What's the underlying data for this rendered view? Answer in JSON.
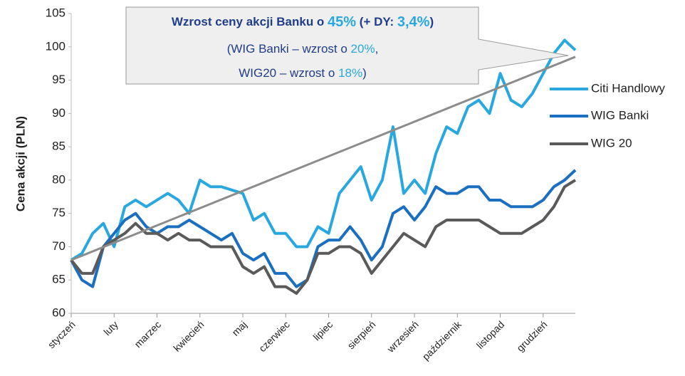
{
  "chart_data": {
    "type": "line",
    "y_label": "Cena akcji (PLN)",
    "categories": [
      "styczeń",
      null,
      null,
      null,
      "luty",
      null,
      null,
      null,
      "marzec",
      null,
      null,
      null,
      "kwiecień",
      null,
      null,
      null,
      "maj",
      null,
      null,
      null,
      "czerwiec",
      null,
      null,
      null,
      "lipiec",
      null,
      null,
      null,
      "sierpień",
      null,
      null,
      null,
      "wrzesień",
      null,
      null,
      null,
      "październik",
      null,
      null,
      null,
      "listopad",
      null,
      null,
      null,
      "grudzień",
      null,
      null,
      null
    ],
    "series": [
      {
        "name": "Citi Handlowy",
        "color": "#29a8e0",
        "values": [
          68,
          69,
          72,
          73.5,
          70,
          76,
          77,
          76,
          77,
          78,
          77,
          75,
          80,
          79,
          79,
          78.5,
          78,
          74,
          75,
          72,
          72,
          70,
          70,
          73,
          72,
          78,
          80,
          82,
          77,
          80,
          88,
          78,
          80,
          78,
          84,
          88,
          87,
          91,
          92,
          90,
          96,
          92,
          91,
          93,
          96,
          99,
          101,
          99.5
        ]
      },
      {
        "name": "WIG Banki",
        "color": "#1a6fc0",
        "values": [
          68,
          65,
          64,
          70,
          72,
          74,
          75,
          73,
          72,
          73,
          73,
          74,
          73,
          72,
          71,
          72,
          69,
          68,
          69,
          66,
          66,
          64,
          65,
          70,
          71,
          71,
          73,
          71,
          68,
          70,
          75,
          76,
          74,
          76,
          79,
          78,
          78,
          79,
          79,
          77,
          77,
          76,
          76,
          76,
          77,
          79,
          80,
          81.5
        ]
      },
      {
        "name": "WIG 20",
        "color": "#5a5a5a",
        "values": [
          68,
          66,
          66,
          70,
          71,
          72,
          73.5,
          72,
          72,
          71,
          72,
          71,
          71,
          70,
          70,
          70,
          67,
          66,
          67,
          64,
          64,
          63,
          65,
          69,
          69,
          70,
          70,
          69,
          66,
          68,
          70,
          72,
          71,
          70,
          73,
          74,
          74,
          74,
          74,
          73,
          72,
          72,
          72,
          73,
          74,
          76,
          79,
          80
        ]
      }
    ],
    "trend": {
      "color": "#8c8c8c",
      "values": [
        68,
        98.5
      ]
    },
    "ylim": [
      60,
      105
    ],
    "yticks": [
      60,
      65,
      70,
      75,
      80,
      85,
      90,
      95,
      100,
      105
    ],
    "grid": false,
    "legend": "right",
    "annotation": [
      [
        {
          "text": "Wzrost ceny akcji Banku o ",
          "hl": false
        },
        {
          "text": "45%",
          "hl": true
        },
        {
          "text": " (+ DY: ",
          "hl": false
        },
        {
          "text": "3,4%",
          "hl": true
        },
        {
          "text": ")",
          "hl": false
        }
      ],
      [
        {
          "text": "(WIG Banki – wzrost o ",
          "hl": false
        },
        {
          "text": "20%",
          "hl": true
        },
        {
          "text": ",",
          "hl": false
        }
      ],
      [
        {
          "text": "WIG20 – wzrost o ",
          "hl": false
        },
        {
          "text": "18%",
          "hl": true
        },
        {
          "text": ")",
          "hl": false
        }
      ]
    ]
  }
}
